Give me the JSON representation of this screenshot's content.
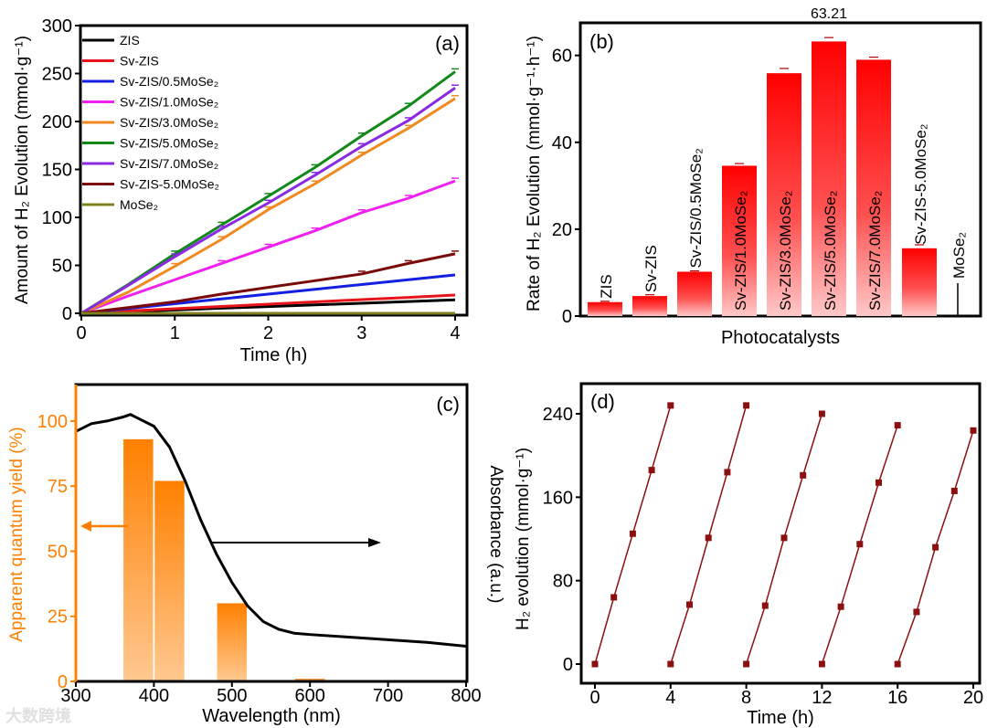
{
  "watermark": "大数跨境",
  "chart_data": [
    {
      "panel": "(a)",
      "type": "line",
      "xlabel": "Time (h)",
      "ylabel": "Amount of H₂ Evolution (mmol·g⁻¹)",
      "xlim": [
        0,
        4
      ],
      "ylim": [
        0,
        300
      ],
      "xticks": [
        0,
        1,
        2,
        3,
        4
      ],
      "yticks": [
        0,
        50,
        100,
        150,
        200,
        250,
        300
      ],
      "legend": "top-left",
      "x": [
        0,
        0.5,
        1,
        1.5,
        2,
        2.5,
        3,
        3.5,
        4
      ],
      "series": [
        {
          "name": "ZIS",
          "color": "#000000",
          "values": [
            0,
            1.8,
            3.5,
            5.3,
            7,
            8.8,
            10.5,
            12.3,
            14
          ]
        },
        {
          "name": "Sv-ZIS",
          "color": "#e8141b",
          "values": [
            0,
            2.4,
            4.8,
            7.1,
            9.5,
            11.9,
            14.3,
            16.6,
            19
          ]
        },
        {
          "name": "Sv-ZIS/0.5MoSe₂",
          "color": "#1420e0",
          "values": [
            0,
            5,
            10,
            15,
            20,
            25,
            30,
            35,
            40
          ]
        },
        {
          "name": "Sv-ZIS/1.0MoSe₂",
          "color": "#f020f0",
          "values": [
            0,
            18,
            35,
            52,
            69,
            86,
            105,
            120,
            138
          ]
        },
        {
          "name": "Sv-ZIS/3.0MoSe₂",
          "color": "#f08a20",
          "values": [
            0,
            22,
            49,
            77,
            108,
            135,
            165,
            193,
            224
          ]
        },
        {
          "name": "Sv-ZIS/5.0MoSe₂",
          "color": "#12881a",
          "values": [
            0,
            30,
            62,
            92,
            122,
            152,
            185,
            216,
            252
          ]
        },
        {
          "name": "Sv-ZIS/7.0MoSe₂",
          "color": "#8a2be2",
          "values": [
            0,
            29,
            59,
            88,
            115,
            144,
            174,
            201,
            235
          ]
        },
        {
          "name": "Sv-ZIS-5.0MoSe₂",
          "color": "#7a0a0a",
          "values": [
            0,
            6,
            12,
            20,
            27,
            34,
            41,
            52,
            62
          ]
        },
        {
          "name": "MoSe₂",
          "color": "#808020",
          "values": [
            0,
            0,
            0,
            0,
            0,
            0,
            0,
            0,
            0
          ]
        }
      ]
    },
    {
      "panel": "(b)",
      "type": "bar",
      "xlabel": "Photocatalysts",
      "ylabel": "Rate of H₂ Evolution (mmol·g⁻¹·h⁻¹)",
      "ylim": [
        0,
        67.5
      ],
      "yticks": [
        0,
        20,
        40,
        60
      ],
      "categories": [
        "ZIS",
        "Sv-ZIS",
        "Sv-ZIS/0.5MoSe₂",
        "Sv-ZIS/1.0MoSe₂",
        "Sv-ZIS/3.0MoSe₂",
        "Sv-ZIS/5.0MoSe₂",
        "Sv-ZIS/7.0MoSe₂",
        "Sv-ZIS-5.0MoSe₂",
        "MoSe₂"
      ],
      "values": [
        3.2,
        4.6,
        10.2,
        34.6,
        55.9,
        63.21,
        59.0,
        15.6,
        0
      ],
      "errors": [
        0.2,
        0.3,
        0.2,
        0.5,
        1.1,
        0.9,
        0.6,
        0.8,
        0
      ],
      "annotation": "63.21",
      "color": "#ff0000"
    },
    {
      "panel": "(c)",
      "type": "bar+line",
      "xlabel": "Wavelength (nm)",
      "ylabel_left": "Apparent quantum yield (%)",
      "ylabel_right": "Absorbance (a.u.)",
      "xlim": [
        300,
        800
      ],
      "ylim": [
        0,
        114
      ],
      "xticks": [
        300,
        400,
        500,
        600,
        700,
        800
      ],
      "yticks": [
        0,
        25,
        50,
        75,
        100
      ],
      "bars": {
        "color": "#ff8000",
        "centers": [
          380,
          420,
          500,
          600
        ],
        "width": 38,
        "values": [
          93,
          77,
          30,
          1
        ]
      },
      "absorbance": {
        "x": [
          300,
          320,
          340,
          360,
          370,
          380,
          400,
          420,
          440,
          460,
          480,
          500,
          520,
          540,
          560,
          580,
          600,
          650,
          700,
          750,
          800
        ],
        "y": [
          96,
          99,
          100,
          101.5,
          102.5,
          101,
          98,
          90,
          77,
          62,
          49,
          38,
          29,
          23,
          20,
          18.5,
          18,
          17,
          16,
          15,
          13.5
        ]
      }
    },
    {
      "panel": "(d)",
      "type": "line",
      "xlabel": "Time (h)",
      "ylabel": "H₂ evolution (mmol·g⁻¹)",
      "xlim": [
        -0.7,
        20.3
      ],
      "ylim": [
        -18,
        269
      ],
      "xticks": [
        0,
        4,
        8,
        12,
        16,
        20
      ],
      "yticks": [
        0,
        80,
        160,
        240
      ],
      "color": "#8b1010",
      "cycles": [
        {
          "x": [
            0,
            1,
            2,
            3,
            4
          ],
          "values": [
            0,
            64,
            125,
            186,
            248
          ]
        },
        {
          "x": [
            4,
            5,
            6,
            7,
            8
          ],
          "values": [
            0,
            57,
            121,
            184,
            248
          ]
        },
        {
          "x": [
            8,
            9,
            10,
            11,
            12
          ],
          "values": [
            0,
            56,
            121,
            181,
            240
          ]
        },
        {
          "x": [
            12,
            13,
            14,
            15,
            16
          ],
          "values": [
            0,
            55,
            115,
            174,
            229
          ]
        },
        {
          "x": [
            16,
            17,
            18,
            19,
            20
          ],
          "values": [
            0,
            50,
            112,
            166,
            224
          ]
        }
      ]
    }
  ]
}
